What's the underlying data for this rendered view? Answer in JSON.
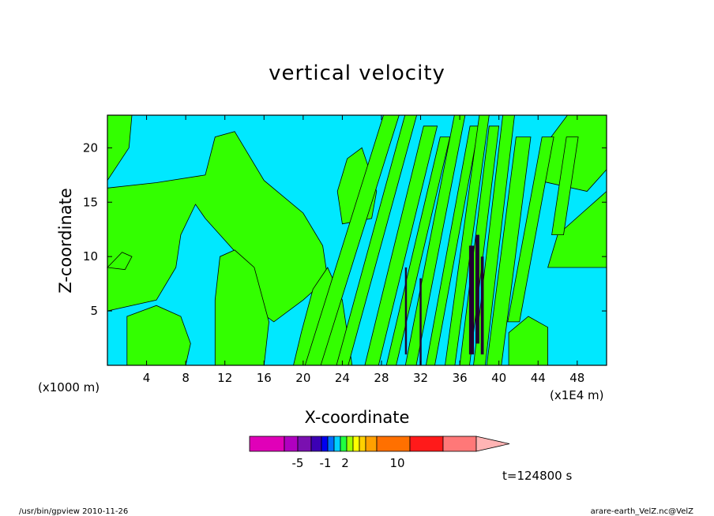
{
  "chart_data": {
    "type": "heatmap",
    "title": "vertical velocity",
    "xlabel": "X-coordinate",
    "ylabel": "Z-coordinate",
    "x_unit_label": "(x1000 m)",
    "x_scale_label": "(x1E4 m)",
    "x_ticks": [
      4,
      8,
      12,
      16,
      20,
      24,
      28,
      32,
      36,
      40,
      44,
      48
    ],
    "y_ticks": [
      5,
      10,
      15,
      20
    ],
    "xlim": [
      0,
      51
    ],
    "ylim": [
      0,
      23
    ],
    "colorbar": {
      "tick_labels": [
        "-5",
        "-1",
        "2",
        "10"
      ],
      "colors": [
        "#e000b8",
        "#b000c0",
        "#7a10b0",
        "#3c00b4",
        "#0000f0",
        "#0070ff",
        "#00d0ff",
        "#20ff40",
        "#a0ff00",
        "#ffff00",
        "#ffd000",
        "#ffa000",
        "#ff7000",
        "#ff1a1a",
        "#ff7878",
        "#ffb4b4"
      ]
    },
    "dominant_colors": {
      "background": "#00e8ff",
      "positive": "#33ff00",
      "contour": "#000000"
    },
    "time_label": "t=124800 s"
  },
  "footer": {
    "left": "/usr/bin/gpview  2010-11-26",
    "right": "arare-earth_VelZ.nc@VelZ"
  }
}
